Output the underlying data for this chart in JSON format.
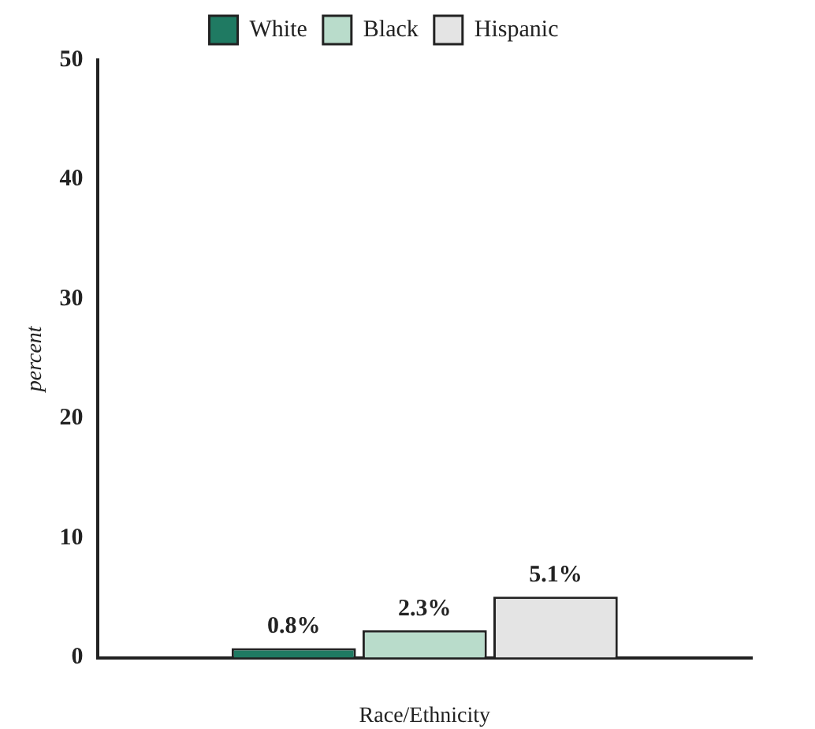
{
  "chart_data": {
    "type": "bar",
    "categories": [
      null
    ],
    "xlabel": "Race/Ethnicity",
    "ylabel": "percent",
    "ylim": [
      0,
      50
    ],
    "yticks": [
      0,
      10,
      20,
      30,
      40,
      50
    ],
    "grid": false,
    "legend": "top",
    "series": [
      {
        "name": "White",
        "color": "#1f7a62",
        "values": [
          0.8
        ],
        "value_labels": [
          "0.8%"
        ]
      },
      {
        "name": "Black",
        "color": "#b9dccb",
        "values": [
          2.3
        ],
        "value_labels": [
          "2.3%"
        ]
      },
      {
        "name": "Hispanic",
        "color": "#e4e4e4",
        "values": [
          5.1
        ],
        "value_labels": [
          "5.1%"
        ]
      }
    ]
  }
}
